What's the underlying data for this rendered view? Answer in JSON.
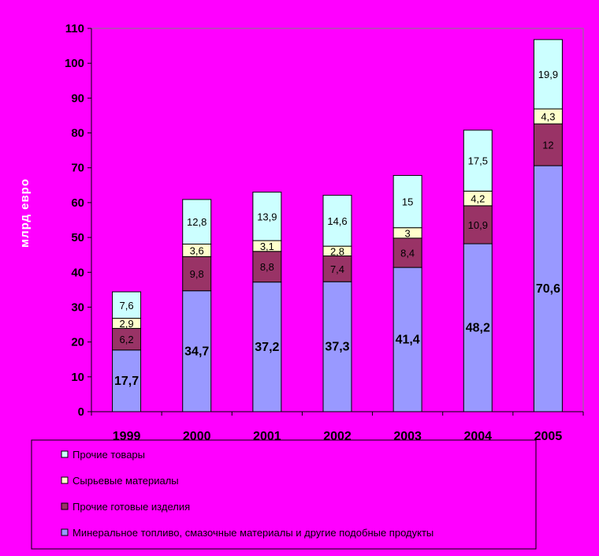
{
  "chart_data": {
    "type": "bar",
    "stacked": true,
    "ylabel": "млрд евро",
    "ylim": [
      0,
      110
    ],
    "ytick_step": 10,
    "grid": false,
    "legend_position": "bottom",
    "categories": [
      "1999",
      "2000",
      "2001",
      "2002",
      "2003",
      "2004",
      "2005"
    ],
    "series": [
      {
        "name": "Минеральное топливо, смазочные материалы и другие подобные продукты",
        "color": "#9999ff",
        "values": [
          17.7,
          34.7,
          37.2,
          37.3,
          41.4,
          48.2,
          70.6
        ],
        "labels": [
          "17,7",
          "34,7",
          "37,2",
          "37,3",
          "41,4",
          "48,2",
          "70,6"
        ]
      },
      {
        "name": "Прочие готовые изделия",
        "color": "#993366",
        "values": [
          6.2,
          9.8,
          8.8,
          7.4,
          8.4,
          10.9,
          12
        ],
        "labels": [
          "6,2",
          "9,8",
          "8,8",
          "7,4",
          "8,4",
          "10,9",
          "12"
        ]
      },
      {
        "name": "Сырьевые материалы",
        "color": "#ffffcc",
        "values": [
          2.9,
          3.6,
          3.1,
          2.8,
          3,
          4.2,
          4.3
        ],
        "labels": [
          "2,9",
          "3,6",
          "3,1",
          "2,8",
          "3",
          "4,2",
          "4,3"
        ]
      },
      {
        "name": "Прочие товары",
        "color": "#ccffff",
        "values": [
          7.6,
          12.8,
          13.9,
          14.6,
          15,
          17.5,
          19.9
        ],
        "labels": [
          "7,6",
          "12,8",
          "13,9",
          "14,6",
          "15",
          "17,5",
          "19,9"
        ]
      }
    ],
    "legend_order": [
      3,
      2,
      1,
      0
    ]
  }
}
